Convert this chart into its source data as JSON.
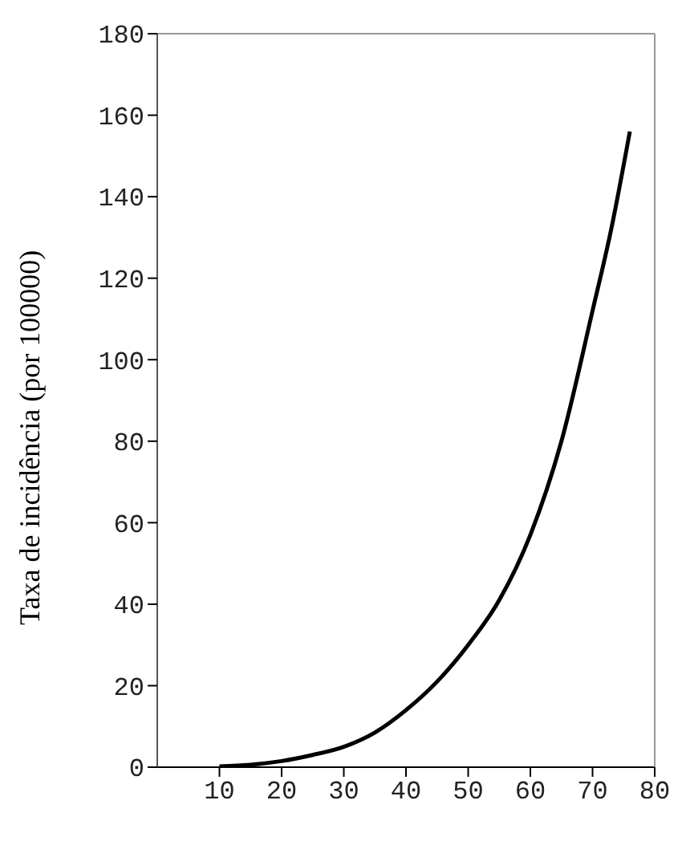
{
  "chart_data": {
    "type": "line",
    "ylabel": "Taxa de incidência (por 100000)",
    "x": [
      10,
      15,
      20,
      25,
      30,
      35,
      40,
      45,
      50,
      55,
      60,
      65,
      70,
      73,
      76
    ],
    "series": [
      {
        "color": "#000000",
        "values": [
          0.2,
          0.6,
          1.5,
          3,
          5,
          8.5,
          14,
          21,
          30,
          41,
          57,
          80,
          112,
          132,
          156
        ]
      }
    ],
    "xlim": [
      0,
      80
    ],
    "xticks": [
      10,
      20,
      30,
      40,
      50,
      60,
      70,
      80
    ],
    "ylim": [
      0,
      180
    ],
    "yticks": [
      0,
      20,
      40,
      60,
      80,
      100,
      120,
      140,
      160,
      180
    ],
    "grid": false,
    "legend": false,
    "marker": "none",
    "line_style": "solid"
  }
}
